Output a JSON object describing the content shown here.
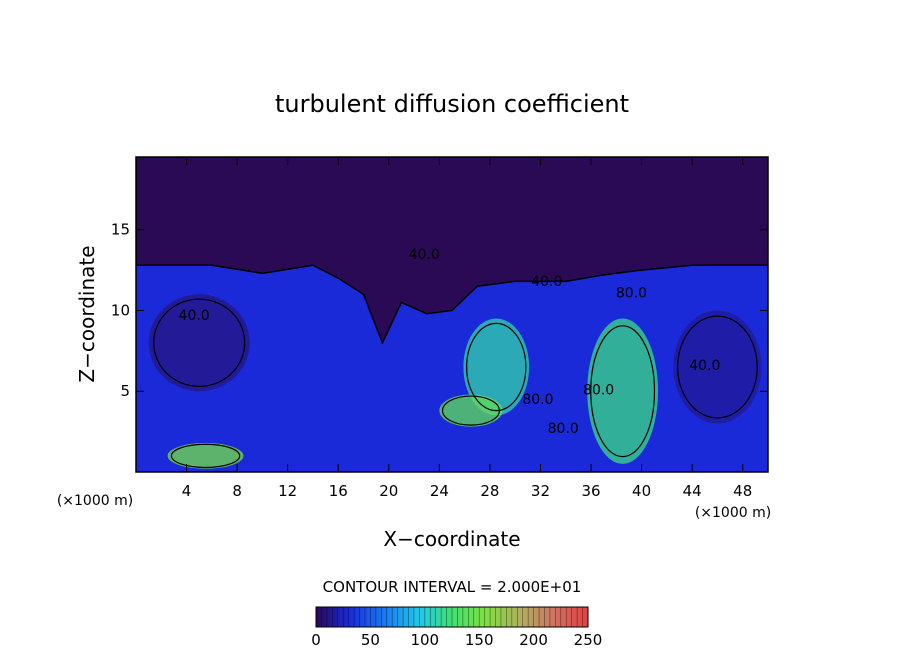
{
  "chart_data": {
    "type": "heatmap",
    "title": "turbulent diffusion coefficient",
    "xlabel": "X−coordinate",
    "ylabel": "Z−coordinate",
    "x_unit": "(×1000 m)",
    "z_unit": "(×1000 m)",
    "xlim": [
      0,
      50
    ],
    "ylim": [
      0,
      19.5
    ],
    "x_ticks": [
      4,
      8,
      12,
      16,
      20,
      24,
      28,
      32,
      36,
      40,
      44,
      48
    ],
    "y_ticks": [
      5,
      10,
      15
    ],
    "contour_interval_text": "CONTOUR INTERVAL =  2.000E+01",
    "colorbar": {
      "min": 0,
      "max": 250,
      "ticks": [
        0,
        50,
        100,
        150,
        200,
        250
      ]
    },
    "contour_labels": [
      {
        "text": "40.0",
        "x": 4.6,
        "z": 9.4
      },
      {
        "text": "40.0",
        "x": 32.5,
        "z": 11.5
      },
      {
        "text": "40.0",
        "x": 22.8,
        "z": 13.2
      },
      {
        "text": "40.0",
        "x": 45.0,
        "z": 6.3
      },
      {
        "text": "80.0",
        "x": 31.8,
        "z": 4.2
      },
      {
        "text": "80.0",
        "x": 36.6,
        "z": 4.8
      },
      {
        "text": "80.0",
        "x": 39.2,
        "z": 10.8
      },
      {
        "text": "80.0",
        "x": 33.8,
        "z": 2.4
      }
    ],
    "field_features": [
      {
        "kind": "background",
        "value": 30
      },
      {
        "kind": "upper_layer",
        "z_top": 19.5,
        "value": 0
      },
      {
        "kind": "blob",
        "x": 5.5,
        "z": 1.0,
        "rx": 3.0,
        "rz": 0.8,
        "value": 150
      },
      {
        "kind": "blob",
        "x": 28.5,
        "z": 6.5,
        "rx": 2.6,
        "rz": 3.0,
        "value": 110
      },
      {
        "kind": "blob",
        "x": 38.5,
        "z": 5.0,
        "rx": 2.8,
        "rz": 4.5,
        "value": 120
      },
      {
        "kind": "blob",
        "x": 26.5,
        "z": 3.8,
        "rx": 2.5,
        "rz": 1.0,
        "value": 140
      },
      {
        "kind": "blob",
        "x": 5.0,
        "z": 8.0,
        "rx": 4.0,
        "rz": 3.0,
        "value": 10
      },
      {
        "kind": "blob",
        "x": 46.0,
        "z": 6.5,
        "rx": 3.5,
        "rz": 3.5,
        "value": 15
      }
    ]
  }
}
